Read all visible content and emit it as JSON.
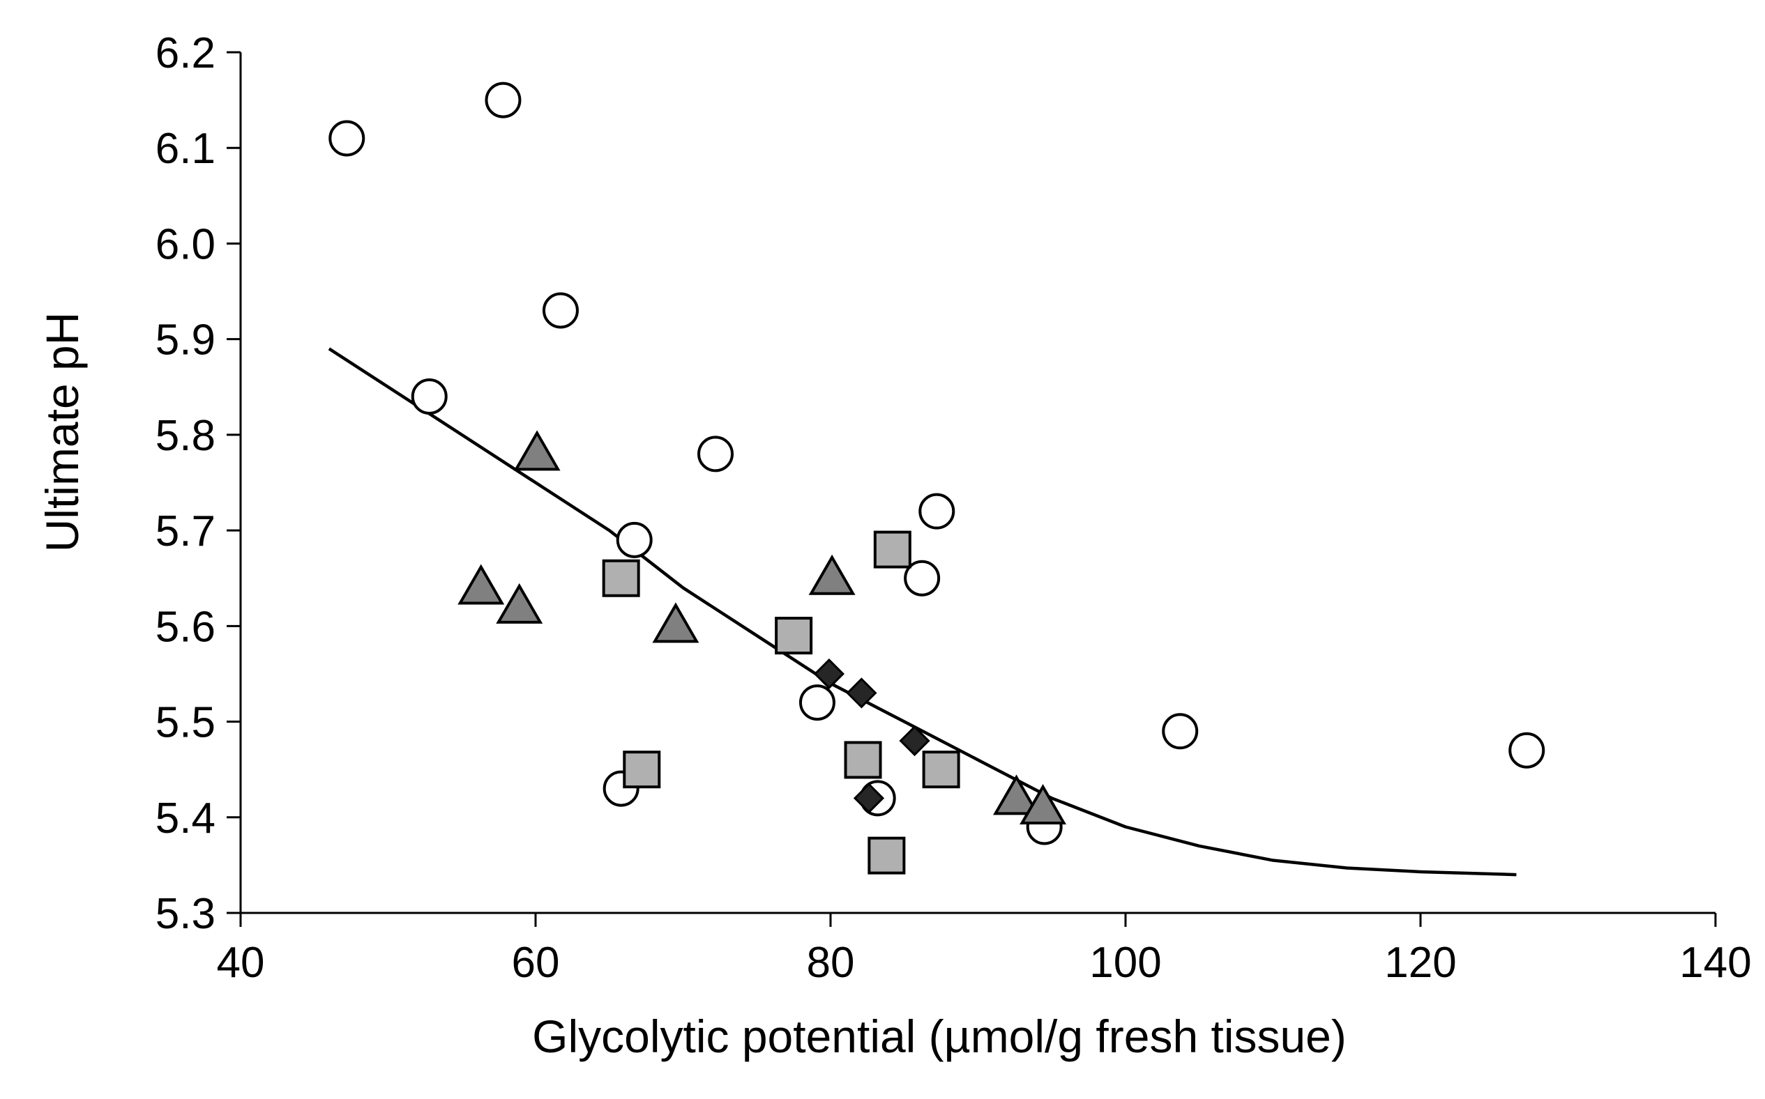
{
  "chart_data": {
    "type": "scatter",
    "title": "",
    "xlabel": "Glycolytic potential  (µmol/g  fresh tissue)",
    "ylabel": "Ultimate pH",
    "xlim": [
      40,
      140
    ],
    "ylim": [
      5.3,
      6.2
    ],
    "xticks": [
      "40",
      "60",
      "80",
      "100",
      "120",
      "140"
    ],
    "yticks": [
      "5.3",
      "5.4",
      "5.5",
      "5.6",
      "5.7",
      "5.8",
      "5.9",
      "6.0",
      "6.1",
      "6.2"
    ],
    "grid": false,
    "legend": "none",
    "series": [
      {
        "name": "circles",
        "marker": "circle",
        "fill": "#ffffff",
        "x": [
          47.2,
          57.8,
          61.7,
          52.8,
          72.2,
          66.7,
          87.2,
          86.2,
          79.1,
          65.8,
          83.2,
          94.5,
          103.7,
          127.2
        ],
        "y": [
          6.11,
          6.15,
          5.93,
          5.84,
          5.78,
          5.69,
          5.72,
          5.65,
          5.52,
          5.43,
          5.42,
          5.39,
          5.49,
          5.47
        ]
      },
      {
        "name": "triangles",
        "marker": "triangle",
        "fill": "#808080",
        "x": [
          60.1,
          56.3,
          58.9,
          69.5,
          80.1,
          92.6,
          94.4
        ],
        "y": [
          5.78,
          5.64,
          5.62,
          5.6,
          5.65,
          5.42,
          5.41
        ]
      },
      {
        "name": "squares",
        "marker": "square",
        "fill": "#b0b0b0",
        "x": [
          65.8,
          84.2,
          77.5,
          67.2,
          82.2,
          87.5,
          83.8
        ],
        "y": [
          5.65,
          5.68,
          5.59,
          5.45,
          5.46,
          5.45,
          5.36
        ]
      },
      {
        "name": "diamonds",
        "marker": "diamond",
        "fill": "#262626",
        "x": [
          79.9,
          82.1,
          85.7,
          82.6
        ],
        "y": [
          5.55,
          5.53,
          5.48,
          5.42
        ]
      }
    ],
    "fit_curve": {
      "name": "fitted curve",
      "x": [
        46,
        50,
        55,
        60,
        65,
        70,
        75,
        80,
        85,
        90,
        95,
        100,
        105,
        110,
        115,
        120,
        126.5
      ],
      "y": [
        5.89,
        5.85,
        5.8,
        5.75,
        5.7,
        5.64,
        5.59,
        5.54,
        5.5,
        5.46,
        5.42,
        5.39,
        5.37,
        5.355,
        5.347,
        5.343,
        5.34
      ]
    }
  }
}
